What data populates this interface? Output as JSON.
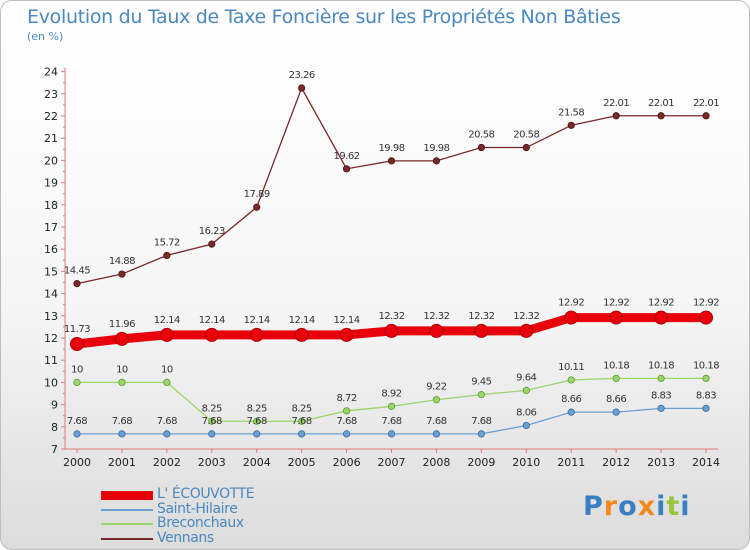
{
  "title": "Evolution du Taux de Taxe Foncière sur les Propriétés Non Bâties",
  "subtitle": "(en %)",
  "brand": {
    "text": "Proxiti",
    "colors": [
      "#3a7fc4",
      "#f08a1c",
      "#3a7fc4",
      "#f08a1c",
      "#3a7fc4",
      "#9bc43a",
      "#3a7fc4"
    ]
  },
  "chart_data": {
    "type": "line",
    "title": "Evolution du Taux de Taxe Foncière sur les Propriétés Non Bâties",
    "ylabel": "(en %)",
    "xlabel": "",
    "x": [
      "2000",
      "2001",
      "2002",
      "2003",
      "2004",
      "2005",
      "2006",
      "2007",
      "2008",
      "2009",
      "2010",
      "2011",
      "2012",
      "2013",
      "2014"
    ],
    "ylim": [
      7,
      24
    ],
    "yticks": [
      7,
      8,
      9,
      10,
      11,
      12,
      13,
      14,
      15,
      16,
      17,
      18,
      19,
      20,
      21,
      22,
      23,
      24
    ],
    "grid": false,
    "legend_position": "bottom-left",
    "series": [
      {
        "name": "Vennans",
        "color": "#7a2828",
        "values": [
          14.45,
          14.88,
          15.72,
          16.23,
          17.89,
          23.26,
          19.62,
          19.98,
          19.98,
          20.58,
          20.58,
          21.58,
          22.01,
          22.01,
          22.01
        ],
        "labels": [
          "14.45",
          "14.88",
          "15.72",
          "16.23",
          "17.89",
          "23.26",
          "19.62",
          "19.98",
          "19.98",
          "20.58",
          "20.58",
          "21.58",
          "22.01",
          "22.01",
          "22.01"
        ]
      },
      {
        "name": "L' ÉCOUVOTTE",
        "color": "#e8000a",
        "values": [
          11.73,
          11.96,
          12.14,
          12.14,
          12.14,
          12.14,
          12.14,
          12.32,
          12.32,
          12.32,
          12.32,
          12.92,
          12.92,
          12.92,
          12.92
        ],
        "labels": [
          "11.73",
          "11.96",
          "12.14",
          "12.14",
          "12.14",
          "12.14",
          "12.14",
          "12.32",
          "12.32",
          "12.32",
          "12.32",
          "12.92",
          "12.92",
          "12.92",
          "12.92"
        ]
      },
      {
        "name": "Breconchaux",
        "color": "#9bd46a",
        "values": [
          10,
          10,
          10,
          8.25,
          8.25,
          8.25,
          8.72,
          8.92,
          9.22,
          9.45,
          9.64,
          10.11,
          10.18,
          10.18,
          10.18
        ],
        "labels": [
          "10",
          "10",
          "10",
          "8.25",
          "8.25",
          "8.25",
          "8.72",
          "8.92",
          "9.22",
          "9.45",
          "9.64",
          "10.11",
          "10.18",
          "10.18",
          "10.18"
        ]
      },
      {
        "name": "Saint-Hilaire",
        "color": "#6a9fd4",
        "values": [
          7.68,
          7.68,
          7.68,
          7.68,
          7.68,
          7.68,
          7.68,
          7.68,
          7.68,
          7.68,
          8.06,
          8.66,
          8.66,
          8.83,
          8.83
        ],
        "labels": [
          "7.68",
          "7.68",
          "7.68",
          "7.68",
          "7.68",
          "7.68",
          "7.68",
          "7.68",
          "7.68",
          "7.68",
          "8.06",
          "8.66",
          "8.66",
          "8.83",
          "8.83"
        ]
      }
    ]
  },
  "legend": [
    {
      "label": "L' ÉCOUVOTTE",
      "color": "#e8000a",
      "weight": "thick"
    },
    {
      "label": "Saint-Hilaire",
      "color": "#6a9fd4",
      "weight": "thin"
    },
    {
      "label": "Breconchaux",
      "color": "#9bd46a",
      "weight": "thin"
    },
    {
      "label": "Vennans",
      "color": "#7a2828",
      "weight": "thin"
    }
  ]
}
